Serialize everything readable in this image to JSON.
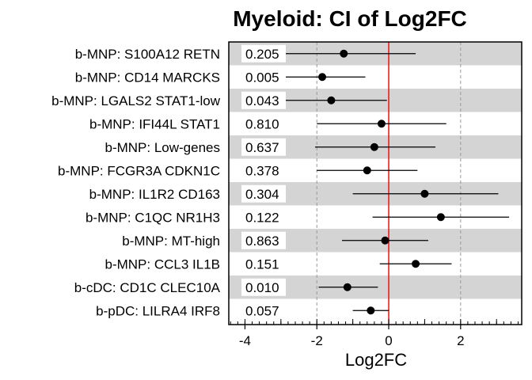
{
  "chart_data": {
    "type": "forest",
    "title": "Myeloid: CI of Log2FC",
    "xlabel": "Log2FC",
    "xlim": [
      -4.45,
      3.7
    ],
    "xticks": [
      -4,
      -2,
      0,
      2
    ],
    "xtick_labels": [
      "-4",
      "-2",
      "0",
      "2"
    ],
    "grid_x": [
      -2,
      2
    ],
    "reference_line": 0,
    "colors": {
      "stripe": "#d4d4d4",
      "reference": "#ee1111",
      "grid": "#999999",
      "point": "#000000"
    },
    "rows": [
      {
        "category": "b-MNP: S100A12 RETN",
        "pvalue": "0.205",
        "estimate": -1.25,
        "lower": -2.9,
        "upper": 0.75
      },
      {
        "category": "b-MNP: CD14 MARCKS",
        "pvalue": "0.005",
        "estimate": -1.85,
        "lower": -2.9,
        "upper": -0.65
      },
      {
        "category": "b-MNP: LGALS2 STAT1-low",
        "pvalue": "0.043",
        "estimate": -1.6,
        "lower": -2.9,
        "upper": -0.05
      },
      {
        "category": "b-MNP: IFI44L STAT1",
        "pvalue": "0.810",
        "estimate": -0.2,
        "lower": -2.0,
        "upper": 1.6
      },
      {
        "category": "b-MNP: Low-genes",
        "pvalue": "0.637",
        "estimate": -0.4,
        "lower": -2.05,
        "upper": 1.3
      },
      {
        "category": "b-MNP: FCGR3A CDKN1C",
        "pvalue": "0.378",
        "estimate": -0.6,
        "lower": -2.0,
        "upper": 0.8
      },
      {
        "category": "b-MNP: IL1R2 CD163",
        "pvalue": "0.304",
        "estimate": 1.0,
        "lower": -1.0,
        "upper": 3.05
      },
      {
        "category": "b-MNP: C1QC NR1H3",
        "pvalue": "0.122",
        "estimate": 1.45,
        "lower": -0.45,
        "upper": 3.35
      },
      {
        "category": "b-MNP: MT-high",
        "pvalue": "0.863",
        "estimate": -0.1,
        "lower": -1.3,
        "upper": 1.1
      },
      {
        "category": "b-MNP: CCL3 IL1B",
        "pvalue": "0.151",
        "estimate": 0.75,
        "lower": -0.25,
        "upper": 1.75
      },
      {
        "category": "b-cDC: CD1C CLEC10A",
        "pvalue": "0.010",
        "estimate": -1.15,
        "lower": -1.95,
        "upper": -0.3
      },
      {
        "category": "b-pDC: LILRA4 IRF8",
        "pvalue": "0.057",
        "estimate": -0.5,
        "lower": -1.0,
        "upper": 0.0
      }
    ]
  }
}
